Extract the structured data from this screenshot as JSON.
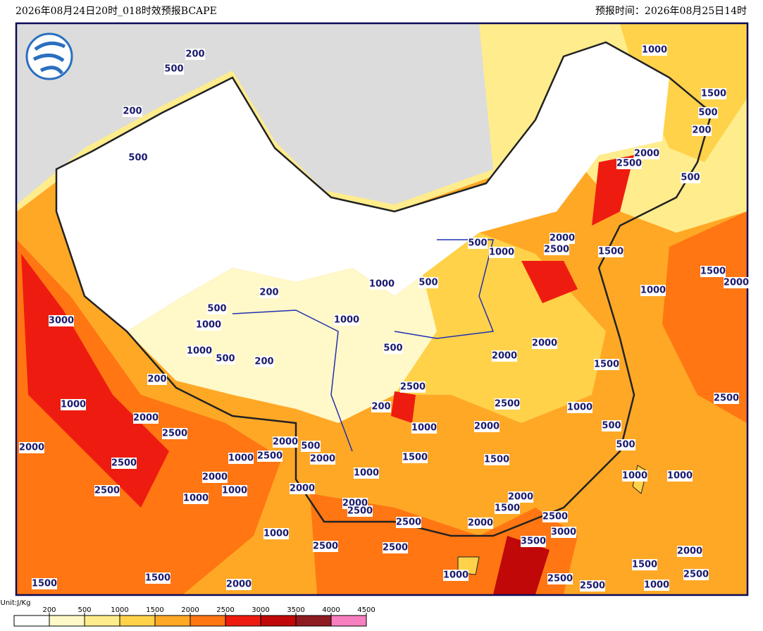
{
  "header": {
    "left": "2026年08月24日20时_018时效预报BCAPE",
    "right": "预报时间：2026年08月25日14时"
  },
  "legend": {
    "unit": "Unit:J/Kg",
    "ticks": [
      200,
      500,
      1000,
      1500,
      2000,
      2500,
      3000,
      3500,
      4000,
      4500
    ],
    "colors": [
      "#ffffff",
      "#fff8c8",
      "#ffec8c",
      "#ffd24a",
      "#ffa826",
      "#ff7612",
      "#ee1c10",
      "#c00808",
      "#8e1a22",
      "#f77ec0"
    ]
  },
  "contour_labels": [
    200,
    500,
    200,
    500,
    1000,
    1500,
    500,
    200,
    2000,
    2500,
    500,
    3000,
    1000,
    1000,
    500,
    200,
    200,
    200,
    500,
    1000,
    1000,
    500,
    500,
    1000,
    2000,
    2500,
    1500,
    1500,
    1000,
    2000,
    500,
    2000,
    2000,
    1500,
    2500,
    200,
    2500,
    1000,
    2000,
    1000,
    500,
    500,
    2500,
    1000,
    2000,
    2500,
    2000,
    2000,
    500,
    2500,
    1000,
    2000,
    2500,
    2000,
    1000,
    2000,
    1000,
    1500,
    1500,
    1000,
    1000,
    1000,
    2500,
    2000,
    1500,
    2000,
    2500,
    2500,
    2000,
    2500,
    3000,
    3500,
    1000,
    2500,
    2500,
    2000,
    1500,
    2500,
    1000,
    1500,
    1500,
    2000,
    1000,
    2500,
    2500
  ]
}
